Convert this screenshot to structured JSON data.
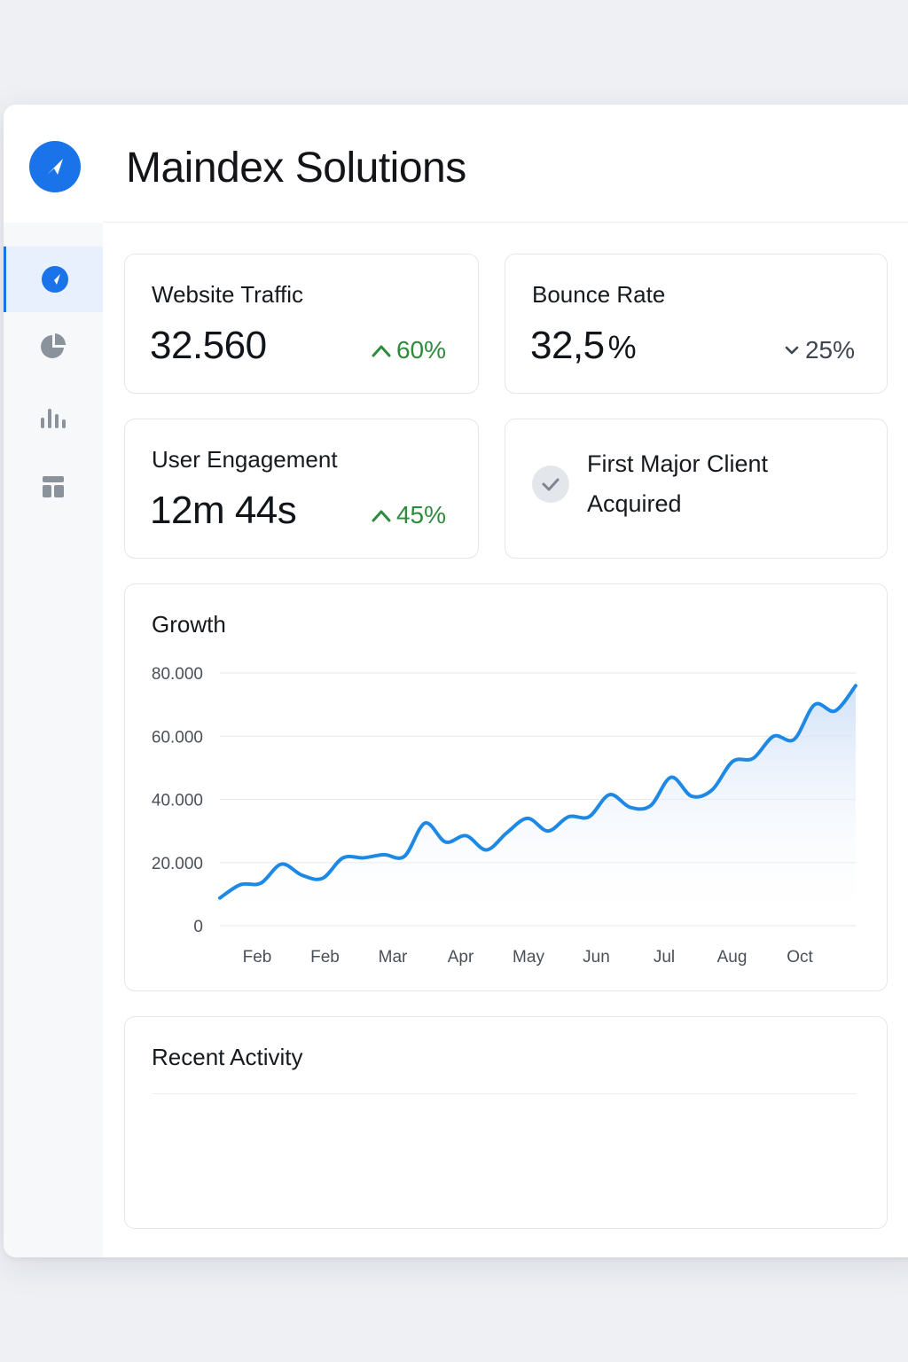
{
  "app": {
    "title": "Maindex Solutions",
    "logo_icon": "compass-arrow-icon",
    "accent_color": "#1a73e8"
  },
  "sidebar": {
    "items": [
      {
        "icon": "compass-icon",
        "active": true
      },
      {
        "icon": "pie-chart-icon",
        "active": false
      },
      {
        "icon": "bar-chart-icon",
        "active": false
      },
      {
        "icon": "layout-icon",
        "active": false
      }
    ]
  },
  "kpis": {
    "traffic": {
      "label": "Website Traffic",
      "value": "32.560",
      "change": "60%",
      "direction": "up"
    },
    "bounce": {
      "label": "Bounce Rate",
      "value": "32,5",
      "unit": "%",
      "change": "25%",
      "direction": "down"
    },
    "engagement": {
      "label": "User Engagement",
      "value": "12m 44s",
      "change": "45%",
      "direction": "up"
    }
  },
  "milestone": {
    "line1": "First Major Client",
    "line2": "Acquired",
    "icon": "check-icon"
  },
  "growth": {
    "title": "Growth"
  },
  "activity": {
    "title": "Recent Activity"
  },
  "chart_data": {
    "type": "area",
    "title": "Growth",
    "xlabel": "",
    "ylabel": "",
    "ylim": [
      0,
      80000
    ],
    "yticks": [
      0,
      20000,
      40000,
      60000,
      80000
    ],
    "ytick_labels": [
      "0",
      "20.000",
      "40.000",
      "60.000",
      "80.000"
    ],
    "x_tick_labels": [
      "Feb",
      "Feb",
      "Mar",
      "Apr",
      "May",
      "Jun",
      "Jul",
      "Aug",
      "Oct"
    ],
    "grid": true,
    "line_color": "#1e88e5",
    "series": [
      {
        "values": [
          8800,
          13000,
          13500,
          19500,
          16000,
          15000,
          21500,
          21500,
          22500,
          22000,
          32500,
          26500,
          28500,
          24000,
          29500,
          34000,
          30000,
          34500,
          34500,
          41500,
          37500,
          38000,
          47000,
          41000,
          43000,
          52000,
          53000,
          60000,
          59000,
          70000,
          68000,
          76000
        ]
      }
    ]
  }
}
